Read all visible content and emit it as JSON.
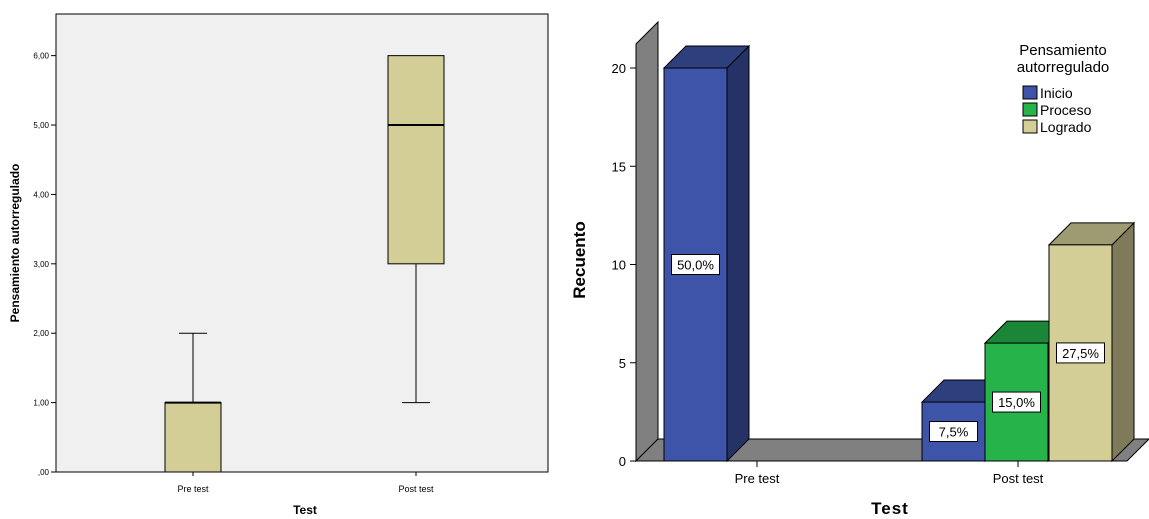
{
  "chart_data": [
    {
      "type": "boxplot",
      "xlabel": "Test",
      "ylabel": "Pensamiento autorregulado",
      "ylim": [
        0,
        6.6
      ],
      "yticks": [
        ",00",
        "1,00",
        "2,00",
        "3,00",
        "4,00",
        "5,00",
        "6,00"
      ],
      "ytick_values": [
        0,
        1,
        2,
        3,
        4,
        5,
        6
      ],
      "categories": [
        "Pre test",
        "Post test"
      ],
      "boxes": [
        {
          "category": "Pre test",
          "min": 0,
          "q1": 0,
          "median": 1,
          "q3": 1,
          "max": 2
        },
        {
          "category": "Post test",
          "min": 1,
          "q1": 3,
          "median": 5,
          "q3": 6,
          "max": 6
        }
      ],
      "colors": {
        "box": "#d3cd96",
        "background": "#f0f0f0"
      },
      "grid": false
    },
    {
      "type": "bar",
      "style": "3d-clustered",
      "xlabel": "Test",
      "ylabel": "Recuento",
      "ylim": [
        0,
        20
      ],
      "yticks": [
        "0",
        "5",
        "10",
        "15",
        "20"
      ],
      "ytick_values": [
        0,
        5,
        10,
        15,
        20
      ],
      "categories": [
        "Pre test",
        "Post test"
      ],
      "legend": {
        "title": "Pensamiento autorregulado",
        "title_lines": [
          "Pensamiento",
          "autorregulado"
        ],
        "placement": "top-right"
      },
      "series": [
        {
          "name": "Inicio",
          "color": "#3d54a8",
          "values": [
            20,
            3
          ],
          "labels": [
            "50,0%",
            "7,5%"
          ]
        },
        {
          "name": "Proceso",
          "color": "#25b34a",
          "values": [
            0,
            6
          ],
          "labels": [
            "",
            "15,0%"
          ]
        },
        {
          "name": "Logrado",
          "color": "#d3cd96",
          "values": [
            0,
            11
          ],
          "labels": [
            "",
            "27,5%"
          ]
        }
      ]
    }
  ]
}
